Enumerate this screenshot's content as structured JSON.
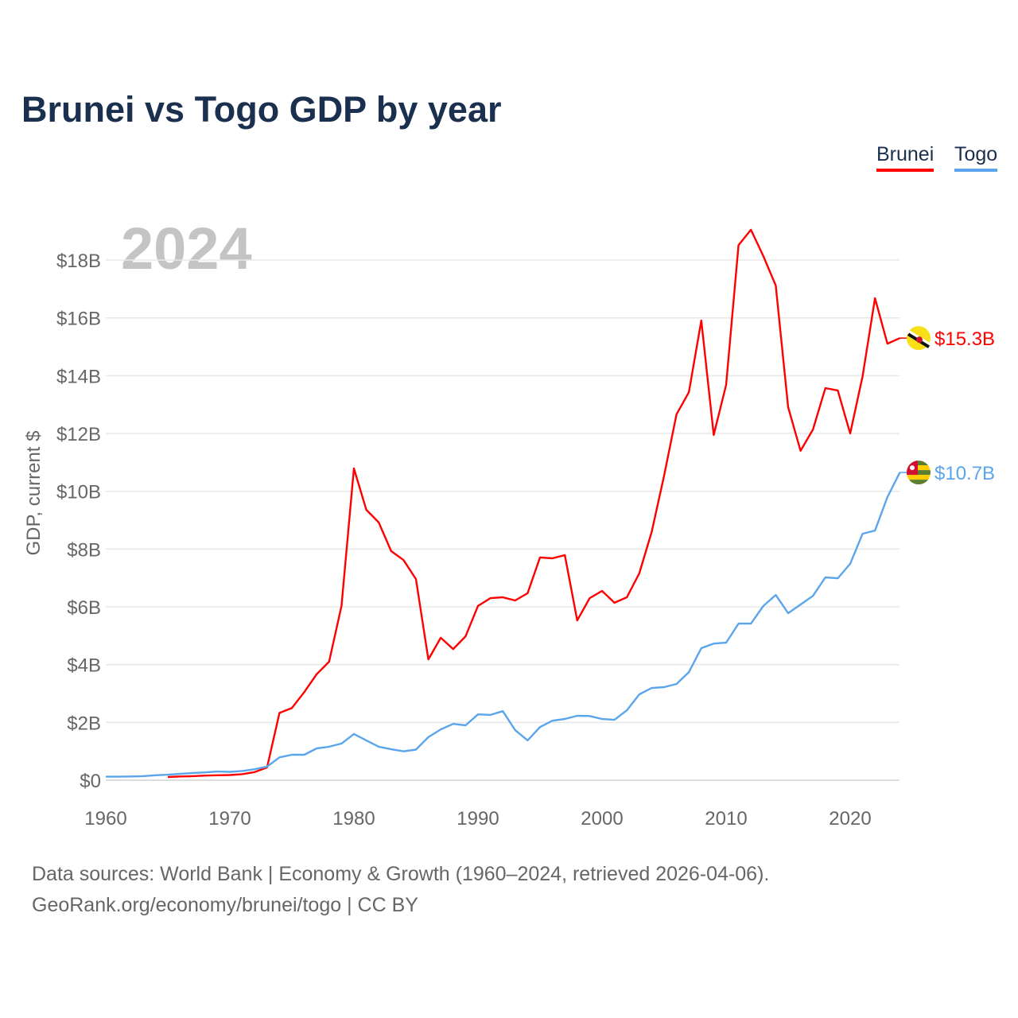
{
  "chart_data": {
    "type": "line",
    "title": "Brunei vs Togo GDP by year",
    "ylabel": "GDP, current $",
    "xlabel": "",
    "year_watermark": "2024",
    "xlim": [
      1960,
      2024
    ],
    "ylim": [
      0,
      19.5
    ],
    "x_ticks": [
      1960,
      1970,
      1980,
      1990,
      2000,
      2010,
      2020
    ],
    "y_ticks": [
      {
        "value": 0,
        "label": "$0"
      },
      {
        "value": 2,
        "label": "$2B"
      },
      {
        "value": 4,
        "label": "$4B"
      },
      {
        "value": 6,
        "label": "$6B"
      },
      {
        "value": 8,
        "label": "$8B"
      },
      {
        "value": 10,
        "label": "$10B"
      },
      {
        "value": 12,
        "label": "$12B"
      },
      {
        "value": 14,
        "label": "$14B"
      },
      {
        "value": 16,
        "label": "$16B"
      },
      {
        "value": 18,
        "label": "$18B"
      }
    ],
    "grid": true,
    "legend_position": "top-right",
    "units": "billions USD",
    "series": [
      {
        "name": "Brunei",
        "color": "#ff0000",
        "end_label": "$15.3B",
        "flag": "brunei-flag",
        "start_year": 1965,
        "values": [
          0.11,
          0.13,
          0.14,
          0.16,
          0.17,
          0.18,
          0.21,
          0.28,
          0.44,
          2.33,
          2.5,
          3.05,
          3.67,
          4.1,
          6.03,
          10.79,
          9.36,
          8.92,
          7.93,
          7.62,
          6.96,
          4.18,
          4.93,
          4.54,
          4.98,
          6.03,
          6.3,
          6.33,
          6.22,
          6.47,
          7.71,
          7.68,
          7.79,
          5.53,
          6.3,
          6.55,
          6.14,
          6.33,
          7.16,
          8.59,
          10.54,
          12.66,
          13.43,
          15.91,
          11.95,
          13.68,
          18.52,
          19.05,
          18.14,
          17.12,
          12.91,
          11.4,
          12.14,
          13.57,
          13.49,
          12.0,
          13.98,
          16.68,
          15.11,
          15.3
        ]
      },
      {
        "name": "Togo",
        "color": "#5aa5ec",
        "end_label": "$10.7B",
        "flag": "togo-flag",
        "start_year": 1960,
        "values": [
          0.12,
          0.12,
          0.13,
          0.14,
          0.17,
          0.19,
          0.22,
          0.25,
          0.27,
          0.3,
          0.29,
          0.32,
          0.38,
          0.47,
          0.79,
          0.88,
          0.88,
          1.1,
          1.16,
          1.27,
          1.6,
          1.38,
          1.16,
          1.07,
          1.0,
          1.06,
          1.49,
          1.76,
          1.95,
          1.9,
          2.28,
          2.26,
          2.39,
          1.73,
          1.38,
          1.84,
          2.06,
          2.12,
          2.23,
          2.22,
          2.12,
          2.09,
          2.42,
          2.97,
          3.19,
          3.22,
          3.33,
          3.74,
          4.57,
          4.73,
          4.76,
          5.42,
          5.42,
          6.03,
          6.41,
          5.78,
          6.08,
          6.38,
          7.02,
          6.99,
          7.49,
          8.53,
          8.64,
          9.8,
          10.65
        ]
      }
    ]
  },
  "footer": {
    "sources": "Data sources: World Bank | Economy & Growth (1960–2024, retrieved 2026-04-06).",
    "link": "GeoRank.org/economy/brunei/togo | CC BY"
  }
}
